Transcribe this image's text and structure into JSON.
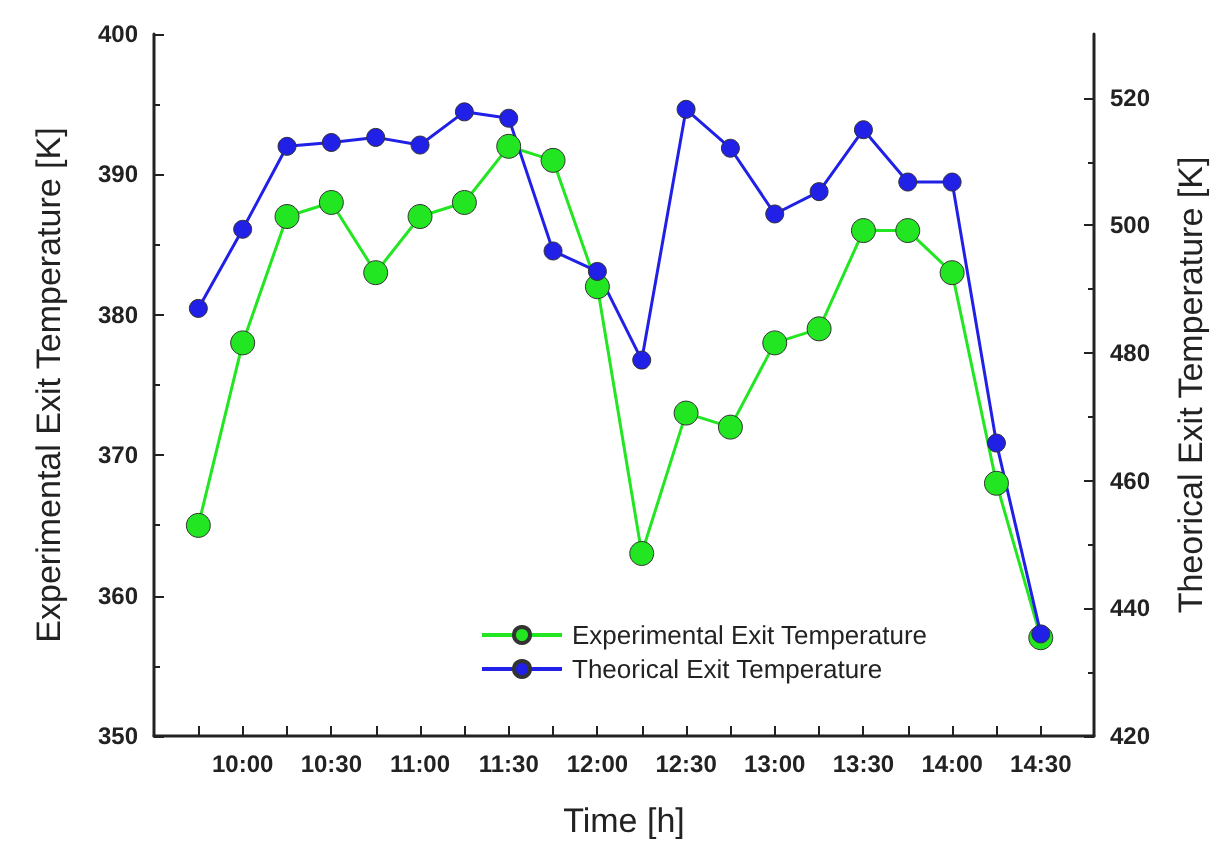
{
  "chart_data": {
    "type": "line",
    "xlabel": "Time [h]",
    "ylabel": "Experimental Exit Temperature [K]",
    "y2label": "Theorical Exit Temperature [K]",
    "x": [
      9.75,
      10,
      10.25,
      10.5,
      10.75,
      11,
      11.25,
      11.5,
      11.75,
      12,
      12.25,
      12.5,
      12.75,
      13,
      13.25,
      13.5,
      13.75,
      14,
      14.25,
      14.5
    ],
    "series": [
      {
        "name": "Experimental Exit Temperature",
        "color": "#22e622",
        "values": [
          365,
          378,
          387,
          388,
          383,
          387,
          388,
          392,
          391,
          382,
          363,
          373,
          372,
          378,
          379,
          386,
          386,
          383,
          368,
          357
        ]
      },
      {
        "name": "Theorical Exit Temperature",
        "color": "#2020e6",
        "axis": "y2",
        "values": [
          487,
          499.4,
          512.4,
          513,
          513.8,
          512.6,
          517.8,
          516.8,
          496,
          492.8,
          478.9,
          518.2,
          512.1,
          501.8,
          505.3,
          515,
          506.8,
          506.8,
          465.9,
          436
        ]
      }
    ],
    "xlim": [
      9.5,
      14.8
    ],
    "xticks": [
      {
        "value": 9.75,
        "label": null
      },
      {
        "value": 10,
        "label": "10:00"
      },
      {
        "value": 10.25,
        "label": null
      },
      {
        "value": 10.5,
        "label": "10:30"
      },
      {
        "value": 10.75,
        "label": null
      },
      {
        "value": 11,
        "label": "11:00"
      },
      {
        "value": 11.25,
        "label": null
      },
      {
        "value": 11.5,
        "label": "11:30"
      },
      {
        "value": 11.75,
        "label": null
      },
      {
        "value": 12,
        "label": "12:00"
      },
      {
        "value": 12.25,
        "label": null
      },
      {
        "value": 12.5,
        "label": "12:30"
      },
      {
        "value": 12.75,
        "label": null
      },
      {
        "value": 13,
        "label": "13:00"
      },
      {
        "value": 13.25,
        "label": null
      },
      {
        "value": 13.5,
        "label": "13:30"
      },
      {
        "value": 13.75,
        "label": null
      },
      {
        "value": 14,
        "label": "14:00"
      },
      {
        "value": 14.25,
        "label": null
      },
      {
        "value": 14.5,
        "label": "14:30"
      }
    ],
    "ylim": [
      350,
      400
    ],
    "yticks": [
      350,
      360,
      370,
      380,
      390,
      400
    ],
    "y2lim": [
      420,
      530
    ],
    "y2ticks": [
      420,
      440,
      460,
      480,
      500,
      520
    ],
    "legend": "bottom",
    "marker": "circle",
    "line_style": "solid",
    "grid": false
  }
}
